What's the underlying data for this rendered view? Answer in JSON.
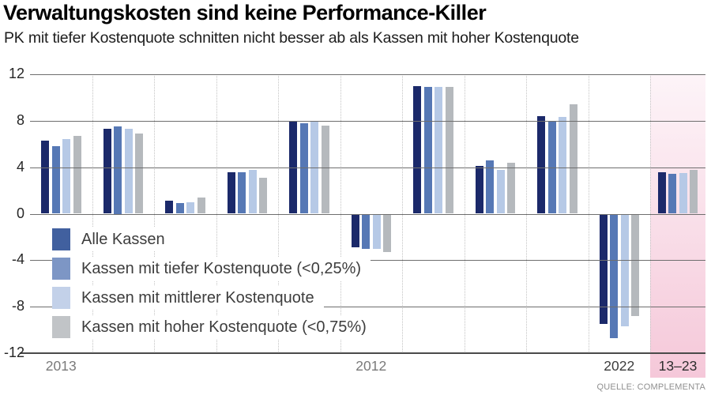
{
  "header": {
    "title": "Verwaltungskosten sind keine Performance-Killer",
    "subtitle": "PK mit tiefer Kostenquote schnitten nicht besser ab als Kassen mit hoher Kostenquote"
  },
  "source": "QUELLE: COMPLEMENTA",
  "chart_data": {
    "type": "bar",
    "group_count": 11,
    "ylim": [
      -12,
      12
    ],
    "y_ticks": [
      "12",
      "8",
      "4",
      "0",
      "-4",
      "-8",
      "-12"
    ],
    "x_tick_labels": [
      {
        "group_index": 0,
        "label": "2013",
        "color": "#7a7a7a"
      },
      {
        "group_index": 5,
        "label": "2012",
        "color": "#7a7a7a"
      },
      {
        "group_index": 9,
        "label": "2022",
        "color": "#3c3c3c"
      },
      {
        "group_index": 10,
        "label": "13–23",
        "color": "#2e2e2e"
      }
    ],
    "grid": {
      "horizontal": "solid",
      "vertical": "dotted",
      "gridline_color": "#6e6e6e",
      "axis_color": "#4a4a4a",
      "vgrid_color": "#c3c3c3"
    },
    "legend_position": "inside-left-bottom",
    "highlight": {
      "group_index": 10,
      "label": "13–23",
      "color_top": "#fdf4f8",
      "color_bottom": "#f5c8d9"
    },
    "series": [
      {
        "name": "Alle Kassen",
        "bar_color": "#1b296a",
        "legend_color": "#41609f",
        "values": [
          6.3,
          7.3,
          1.1,
          3.6,
          7.9,
          -2.9,
          11.0,
          4.1,
          8.4,
          -9.5,
          3.6
        ]
      },
      {
        "name": "Kassen mit tiefer Kostenquote (<0,25%)",
        "bar_color": "#5678b5",
        "legend_color": "#7d96c5",
        "values": [
          5.8,
          7.5,
          0.9,
          3.6,
          7.8,
          -3.0,
          10.9,
          4.6,
          8.0,
          -10.7,
          3.4
        ]
      },
      {
        "name": "Kassen mit mittlerer Kostenquote",
        "bar_color": "#b6c9e6",
        "legend_color": "#c3d1e9",
        "values": [
          6.4,
          7.3,
          1.0,
          3.8,
          7.9,
          -3.0,
          10.9,
          3.8,
          8.3,
          -9.7,
          3.5
        ]
      },
      {
        "name": "Kassen mit hoher Kostenquote (<0,75%)",
        "bar_color": "#b5b9bd",
        "legend_color": "#c1c4c7",
        "values": [
          6.7,
          6.9,
          1.4,
          3.1,
          7.6,
          -3.3,
          10.9,
          4.4,
          9.4,
          -8.8,
          3.8
        ]
      }
    ]
  }
}
